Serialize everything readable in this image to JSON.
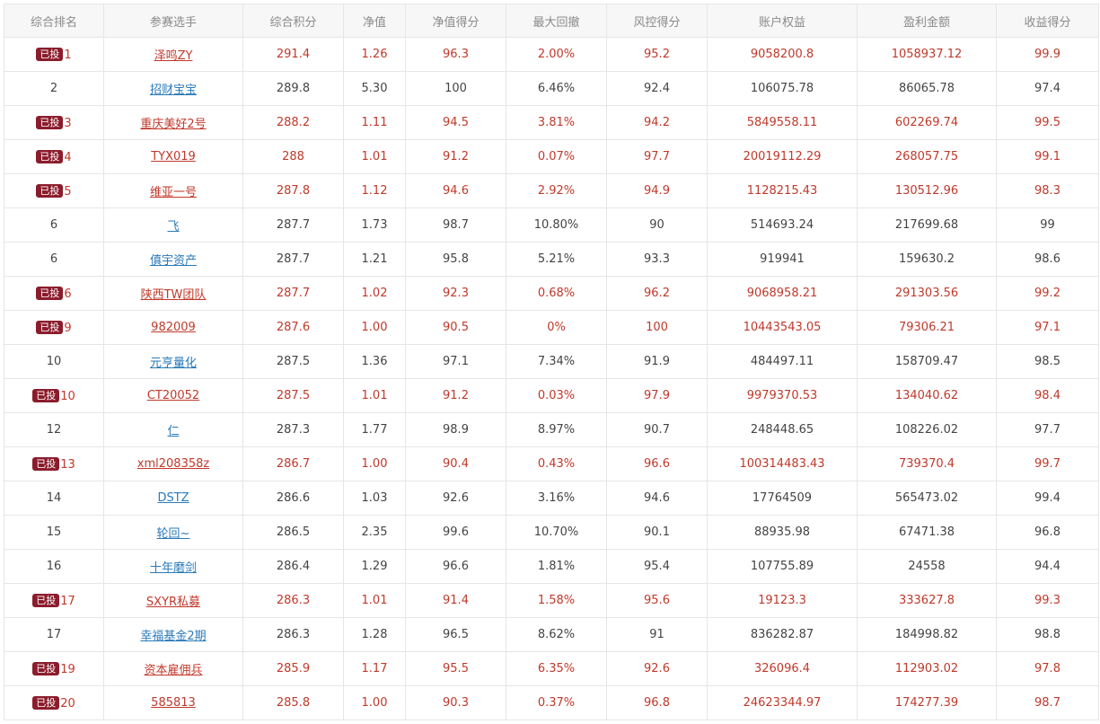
{
  "table": {
    "headers": [
      "综合排名",
      "参赛选手",
      "综合积分",
      "净值",
      "净值得分",
      "最大回撤",
      "风控得分",
      "账户权益",
      "盈利金额",
      "收益得分"
    ],
    "badge_label": "已投",
    "rows": [
      {
        "invested": true,
        "rank": "1",
        "player": "泽鸣ZY",
        "score": "291.4",
        "nav": "1.26",
        "nav_score": "96.3",
        "max_drawdown": "2.00%",
        "risk_score": "95.2",
        "equity": "9058200.8",
        "profit": "1058937.12",
        "return_score": "99.9"
      },
      {
        "invested": false,
        "rank": "2",
        "player": "招财宝宝",
        "score": "289.8",
        "nav": "5.30",
        "nav_score": "100",
        "max_drawdown": "6.46%",
        "risk_score": "92.4",
        "equity": "106075.78",
        "profit": "86065.78",
        "return_score": "97.4"
      },
      {
        "invested": true,
        "rank": "3",
        "player": "重庆美好2号",
        "score": "288.2",
        "nav": "1.11",
        "nav_score": "94.5",
        "max_drawdown": "3.81%",
        "risk_score": "94.2",
        "equity": "5849558.11",
        "profit": "602269.74",
        "return_score": "99.5"
      },
      {
        "invested": true,
        "rank": "4",
        "player": "TYX019",
        "score": "288",
        "nav": "1.01",
        "nav_score": "91.2",
        "max_drawdown": "0.07%",
        "risk_score": "97.7",
        "equity": "20019112.29",
        "profit": "268057.75",
        "return_score": "99.1"
      },
      {
        "invested": true,
        "rank": "5",
        "player": "维亚一号",
        "score": "287.8",
        "nav": "1.12",
        "nav_score": "94.6",
        "max_drawdown": "2.92%",
        "risk_score": "94.9",
        "equity": "1128215.43",
        "profit": "130512.96",
        "return_score": "98.3"
      },
      {
        "invested": false,
        "rank": "6",
        "player": "飞",
        "score": "287.7",
        "nav": "1.73",
        "nav_score": "98.7",
        "max_drawdown": "10.80%",
        "risk_score": "90",
        "equity": "514693.24",
        "profit": "217699.68",
        "return_score": "99"
      },
      {
        "invested": false,
        "rank": "6",
        "player": "傎宇资产",
        "score": "287.7",
        "nav": "1.21",
        "nav_score": "95.8",
        "max_drawdown": "5.21%",
        "risk_score": "93.3",
        "equity": "919941",
        "profit": "159630.2",
        "return_score": "98.6"
      },
      {
        "invested": true,
        "rank": "6",
        "player": "陕西TW团队",
        "score": "287.7",
        "nav": "1.02",
        "nav_score": "92.3",
        "max_drawdown": "0.68%",
        "risk_score": "96.2",
        "equity": "9068958.21",
        "profit": "291303.56",
        "return_score": "99.2"
      },
      {
        "invested": true,
        "rank": "9",
        "player": "982009",
        "score": "287.6",
        "nav": "1.00",
        "nav_score": "90.5",
        "max_drawdown": "0%",
        "risk_score": "100",
        "equity": "10443543.05",
        "profit": "79306.21",
        "return_score": "97.1"
      },
      {
        "invested": false,
        "rank": "10",
        "player": "元亨量化",
        "score": "287.5",
        "nav": "1.36",
        "nav_score": "97.1",
        "max_drawdown": "7.34%",
        "risk_score": "91.9",
        "equity": "484497.11",
        "profit": "158709.47",
        "return_score": "98.5"
      },
      {
        "invested": true,
        "rank": "10",
        "player": "CT20052",
        "score": "287.5",
        "nav": "1.01",
        "nav_score": "91.2",
        "max_drawdown": "0.03%",
        "risk_score": "97.9",
        "equity": "9979370.53",
        "profit": "134040.62",
        "return_score": "98.4"
      },
      {
        "invested": false,
        "rank": "12",
        "player": "仁",
        "score": "287.3",
        "nav": "1.77",
        "nav_score": "98.9",
        "max_drawdown": "8.97%",
        "risk_score": "90.7",
        "equity": "248448.65",
        "profit": "108226.02",
        "return_score": "97.7"
      },
      {
        "invested": true,
        "rank": "13",
        "player": "xml208358z",
        "score": "286.7",
        "nav": "1.00",
        "nav_score": "90.4",
        "max_drawdown": "0.43%",
        "risk_score": "96.6",
        "equity": "100314483.43",
        "profit": "739370.4",
        "return_score": "99.7"
      },
      {
        "invested": false,
        "rank": "14",
        "player": "DSTZ",
        "score": "286.6",
        "nav": "1.03",
        "nav_score": "92.6",
        "max_drawdown": "3.16%",
        "risk_score": "94.6",
        "equity": "17764509",
        "profit": "565473.02",
        "return_score": "99.4"
      },
      {
        "invested": false,
        "rank": "15",
        "player": "轮回~",
        "score": "286.5",
        "nav": "2.35",
        "nav_score": "99.6",
        "max_drawdown": "10.70%",
        "risk_score": "90.1",
        "equity": "88935.98",
        "profit": "67471.38",
        "return_score": "96.8"
      },
      {
        "invested": false,
        "rank": "16",
        "player": "十年磨剑",
        "score": "286.4",
        "nav": "1.29",
        "nav_score": "96.6",
        "max_drawdown": "1.81%",
        "risk_score": "95.4",
        "equity": "107755.89",
        "profit": "24558",
        "return_score": "94.4"
      },
      {
        "invested": true,
        "rank": "17",
        "player": "SXYR私募",
        "score": "286.3",
        "nav": "1.01",
        "nav_score": "91.4",
        "max_drawdown": "1.58%",
        "risk_score": "95.6",
        "equity": "19123.3",
        "profit": "333627.8",
        "return_score": "99.3"
      },
      {
        "invested": false,
        "rank": "17",
        "player": "幸福基金2期",
        "score": "286.3",
        "nav": "1.28",
        "nav_score": "96.5",
        "max_drawdown": "8.62%",
        "risk_score": "91",
        "equity": "836282.87",
        "profit": "184998.82",
        "return_score": "98.8"
      },
      {
        "invested": true,
        "rank": "19",
        "player": "资本雇佣兵",
        "score": "285.9",
        "nav": "1.17",
        "nav_score": "95.5",
        "max_drawdown": "6.35%",
        "risk_score": "92.6",
        "equity": "326096.4",
        "profit": "112903.02",
        "return_score": "97.8"
      },
      {
        "invested": true,
        "rank": "20",
        "player": "585813",
        "score": "285.8",
        "nav": "1.00",
        "nav_score": "90.3",
        "max_drawdown": "0.37%",
        "risk_score": "96.8",
        "equity": "24623344.97",
        "profit": "174277.39",
        "return_score": "98.7"
      }
    ]
  },
  "colors": {
    "invested_text": "#c0392b",
    "normal_link": "#2a7ab8",
    "badge_bg": "#8b1c2c",
    "header_bg": "#f7f7f7",
    "border": "#e6e6e6"
  }
}
